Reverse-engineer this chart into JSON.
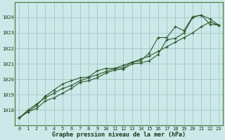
{
  "hours": [
    0,
    1,
    2,
    3,
    4,
    5,
    6,
    7,
    8,
    9,
    10,
    11,
    12,
    13,
    14,
    15,
    16,
    17,
    18,
    19,
    20,
    21,
    22,
    23
  ],
  "line_actual": [
    1017.5,
    1017.9,
    1018.1,
    1018.6,
    1018.8,
    1019.1,
    1019.4,
    1019.8,
    1019.9,
    1020.1,
    1020.4,
    1020.6,
    1020.65,
    1021.0,
    1021.05,
    1021.2,
    1021.6,
    1022.55,
    1022.65,
    1023.0,
    1024.0,
    1024.15,
    1023.55,
    1023.5
  ],
  "line_high": [
    1017.5,
    1017.9,
    1018.3,
    1018.9,
    1019.3,
    1019.7,
    1019.9,
    1020.1,
    1020.15,
    1020.55,
    1020.7,
    1020.7,
    1020.75,
    1021.1,
    1021.2,
    1021.7,
    1022.7,
    1022.7,
    1023.4,
    1023.15,
    1024.05,
    1024.15,
    1023.9,
    1023.5
  ],
  "line_smooth": [
    1017.5,
    1018.0,
    1018.4,
    1018.8,
    1019.1,
    1019.4,
    1019.6,
    1019.9,
    1020.1,
    1020.3,
    1020.5,
    1020.7,
    1020.9,
    1021.1,
    1021.3,
    1021.5,
    1021.8,
    1022.1,
    1022.4,
    1022.7,
    1023.0,
    1023.4,
    1023.7,
    1023.5
  ],
  "bg_color": "#cce8e8",
  "grid_color": "#aacccc",
  "line_color": "#2d5a2d",
  "xlabel": "Graphe pression niveau de la mer (hPa)",
  "ylim_min": 1017.0,
  "ylim_max": 1025.0,
  "yticks": [
    1018,
    1019,
    1020,
    1021,
    1022,
    1023,
    1024
  ],
  "xticks": [
    0,
    1,
    2,
    3,
    4,
    5,
    6,
    7,
    8,
    9,
    10,
    11,
    12,
    13,
    14,
    15,
    16,
    17,
    18,
    19,
    20,
    21,
    22,
    23
  ]
}
